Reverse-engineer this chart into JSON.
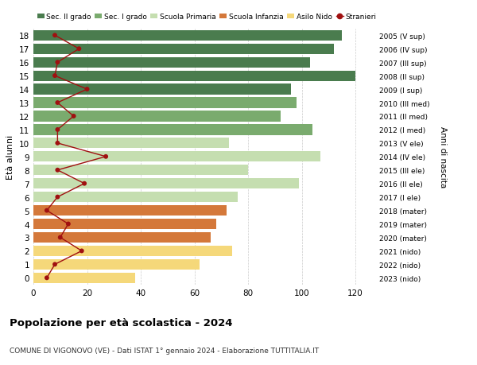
{
  "ages": [
    18,
    17,
    16,
    15,
    14,
    13,
    12,
    11,
    10,
    9,
    8,
    7,
    6,
    5,
    4,
    3,
    2,
    1,
    0
  ],
  "years": [
    "2005 (V sup)",
    "2006 (IV sup)",
    "2007 (III sup)",
    "2008 (II sup)",
    "2009 (I sup)",
    "2010 (III med)",
    "2011 (II med)",
    "2012 (I med)",
    "2013 (V ele)",
    "2014 (IV ele)",
    "2015 (III ele)",
    "2016 (II ele)",
    "2017 (I ele)",
    "2018 (mater)",
    "2019 (mater)",
    "2020 (mater)",
    "2021 (nido)",
    "2022 (nido)",
    "2023 (nido)"
  ],
  "bar_values": [
    115,
    112,
    103,
    120,
    96,
    98,
    92,
    104,
    73,
    107,
    80,
    99,
    76,
    72,
    68,
    66,
    74,
    62,
    38
  ],
  "bar_colors": [
    "#4a7c4e",
    "#4a7c4e",
    "#4a7c4e",
    "#4a7c4e",
    "#4a7c4e",
    "#7aab6e",
    "#7aab6e",
    "#7aab6e",
    "#c5deb0",
    "#c5deb0",
    "#c5deb0",
    "#c5deb0",
    "#c5deb0",
    "#d4783a",
    "#d4783a",
    "#d4783a",
    "#f5d87a",
    "#f5d87a",
    "#f5d87a"
  ],
  "stranieri_values": [
    8,
    17,
    9,
    8,
    20,
    9,
    15,
    9,
    9,
    27,
    9,
    19,
    9,
    5,
    13,
    10,
    18,
    8,
    5
  ],
  "legend_labels": [
    "Sec. II grado",
    "Sec. I grado",
    "Scuola Primaria",
    "Scuola Infanzia",
    "Asilo Nido",
    "Stranieri"
  ],
  "legend_colors": [
    "#4a7c4e",
    "#7aab6e",
    "#c5deb0",
    "#d4783a",
    "#f5d87a",
    "#a01010"
  ],
  "ylabel": "Età alunni",
  "right_ylabel": "Anni di nascita",
  "title": "Popolazione per età scolastica - 2024",
  "subtitle": "COMUNE DI VIGONOVO (VE) - Dati ISTAT 1° gennaio 2024 - Elaborazione TUTTITALIA.IT",
  "xlim": [
    0,
    128
  ],
  "background_color": "#ffffff",
  "grid_color": "#cccccc"
}
